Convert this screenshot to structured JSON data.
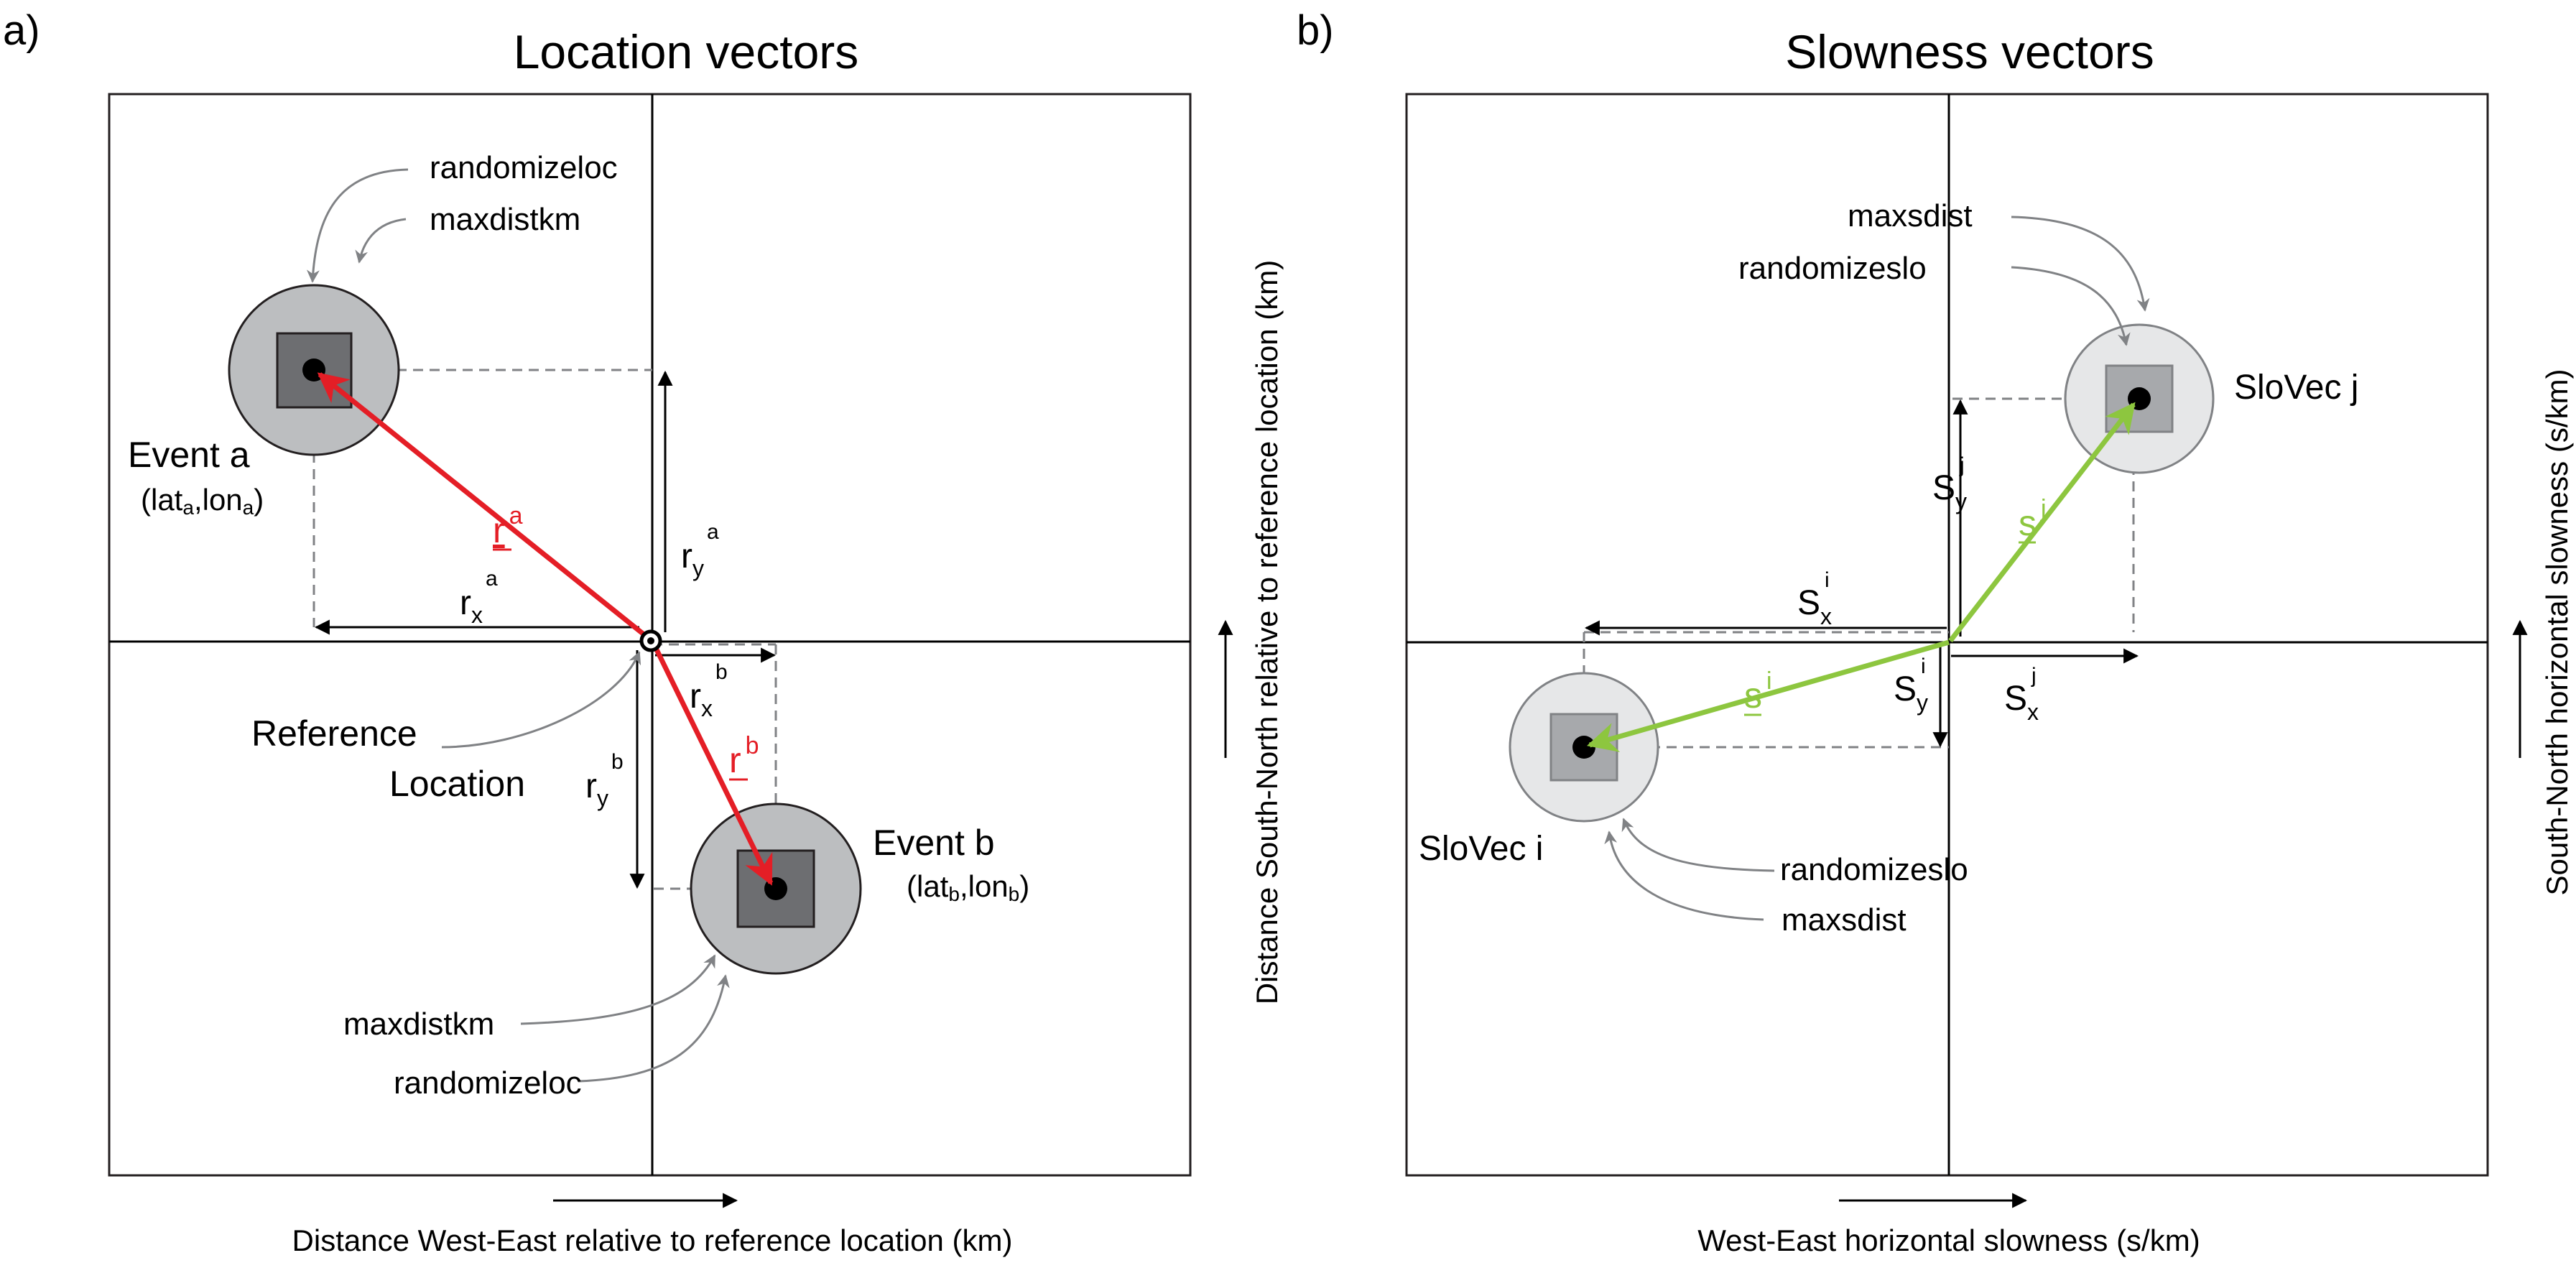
{
  "panel_a": {
    "letter": "a)",
    "title": "Location vectors",
    "event_a": {
      "name": "Event a",
      "coord_open": "(lat",
      "sub1": "a",
      "comma": ",lon",
      "sub2": "a",
      "coord_close": ")"
    },
    "event_b": {
      "name": "Event b",
      "coord_open": "(lat",
      "sub1": "b",
      "comma": ",lon",
      "sub2": "b",
      "coord_close": ")"
    },
    "reference_line1": "Reference",
    "reference_line2": "Location",
    "label_randomizeloc": "randomizeloc",
    "label_maxdistkm": "maxdistkm",
    "label_maxdistkm_b": "maxdistkm",
    "label_randomizeloc_b": "randomizeloc",
    "vec_r": "r",
    "sup_a": "a",
    "sup_b": "b",
    "sub_x": "x",
    "sub_y": "y",
    "xlabel": "Distance West-East relative to reference location (km)",
    "ylabel": "Distance South-North relative to reference location (km)"
  },
  "panel_b": {
    "letter": "b)",
    "title": "Slowness vectors",
    "slovec_j": "SloVec j",
    "slovec_i": "SloVec i",
    "label_maxsdist": "maxsdist",
    "label_randomizeslo": "randomizeslo",
    "label_randomizeslo_i": "randomizeslo",
    "label_maxsdist_i": "maxsdist",
    "vec_s": "s",
    "cap_s": "S",
    "sup_i": "i",
    "sup_j": "j",
    "sub_x": "x",
    "sub_y": "y",
    "xlabel": "West-East horizontal slowness (s/km)",
    "ylabel": "South-North horizontal slowness (s/km)"
  },
  "colors": {
    "red_vector": "#e41e26",
    "green_vector": "#8dc63f",
    "circle_a": "#bcbec0",
    "square_a": "#6d6e71",
    "circle_b": "#e6e7e8",
    "square_b": "#a7a9ac",
    "callout": "#808285"
  }
}
